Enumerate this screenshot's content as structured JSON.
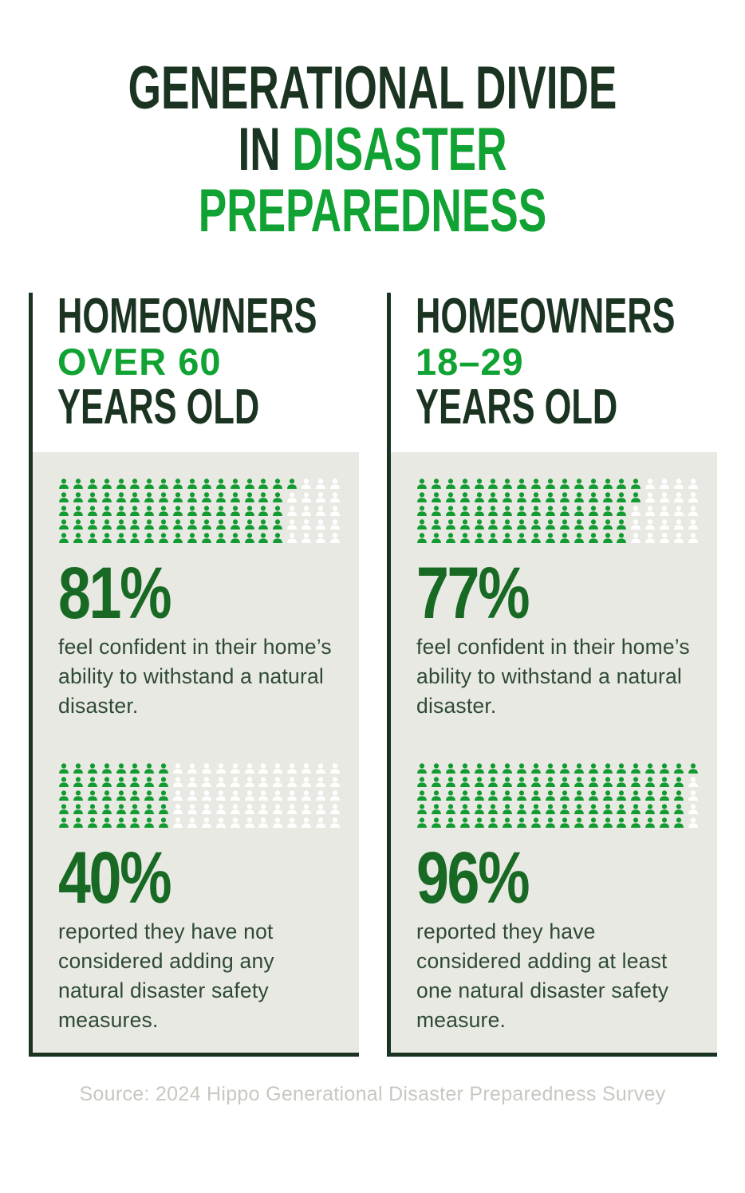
{
  "title": {
    "line1": "GENERATIONAL DIVIDE",
    "line2_dark": "IN",
    "line2_green": "DISASTER",
    "line3_green": "PREPAREDNESS"
  },
  "columns": [
    {
      "header": {
        "line1": "HOMEOWNERS",
        "line2": "OVER 60",
        "line3": "YEARS OLD"
      },
      "stats": [
        {
          "percent": "81%",
          "value": 81,
          "description": "feel confident in their home’s ability to withstand a natural disaster."
        },
        {
          "percent": "40%",
          "value": 40,
          "description": "reported they have not considered adding any natural disaster safety measures."
        }
      ]
    },
    {
      "header": {
        "line1": "HOMEOWNERS",
        "line2": "18–29",
        "line3": "YEARS OLD"
      },
      "stats": [
        {
          "percent": "77%",
          "value": 77,
          "description": "feel confident in their home’s ability to withstand a natural disaster."
        },
        {
          "percent": "96%",
          "value": 96,
          "description": "reported they have considered adding at least one natural disaster safety measure."
        }
      ]
    }
  ],
  "footer": {
    "source": "Source: 2024 Hippo Generational Disaster Preparedness Survey"
  },
  "icons": {
    "unit": "person-icon"
  },
  "colors": {
    "accent_green": "#10a233",
    "dark_green": "#1b3422",
    "number_green": "#176923",
    "body_text_green": "#2e4a35",
    "icon_green": "#119b31",
    "icon_empty": "#ffffff",
    "card_background": "#e9e9e3",
    "source_gray": "#c8c8c1"
  },
  "chart_data": [
    {
      "type": "pictogram",
      "title": "Homeowners over 60 years old",
      "unit_grid": {
        "rows": 5,
        "cols": 20,
        "total_units": 100,
        "fill_order": "column-major",
        "unit_value_percent": 1
      },
      "series": [
        {
          "name": "feel confident in their home’s ability to withstand a natural disaster.",
          "value": 81
        },
        {
          "name": "reported they have not considered adding any natural disaster safety measures.",
          "value": 40
        }
      ]
    },
    {
      "type": "pictogram",
      "title": "Homeowners 18–29 years old",
      "unit_grid": {
        "rows": 5,
        "cols": 20,
        "total_units": 100,
        "fill_order": "column-major",
        "unit_value_percent": 1
      },
      "series": [
        {
          "name": "feel confident in their home’s ability to withstand a natural disaster.",
          "value": 77
        },
        {
          "name": "reported they have considered adding at least one natural disaster safety measure.",
          "value": 96
        }
      ]
    }
  ]
}
